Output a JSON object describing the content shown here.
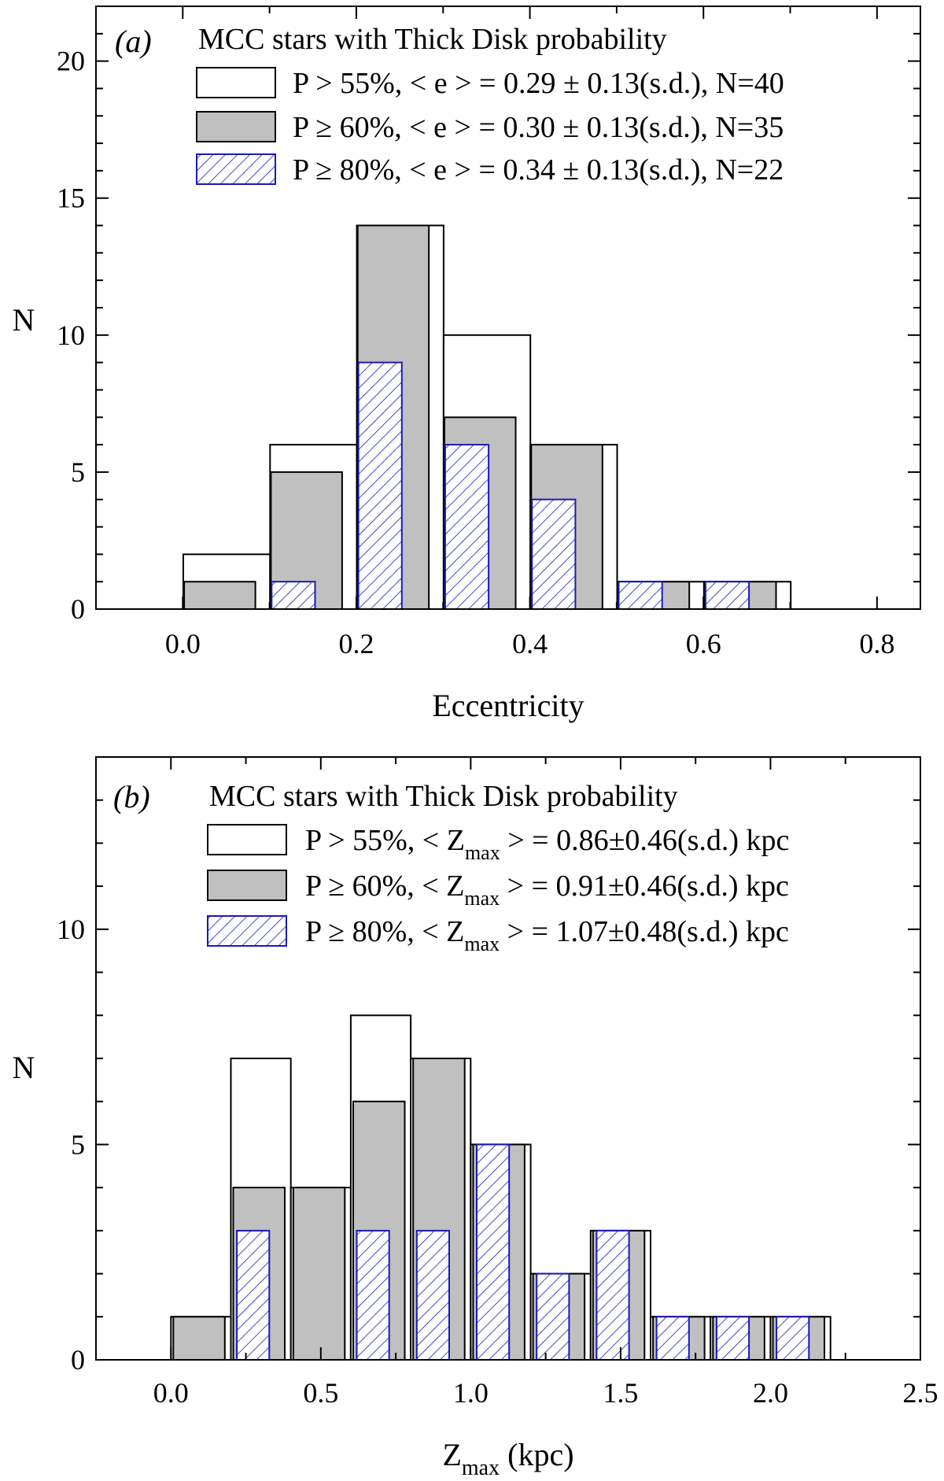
{
  "colors": {
    "bar_open_fill": "#ffffff",
    "bar_gray_fill": "#c0c0c0",
    "hatch_stroke": "#1a1ab8",
    "hatch_bg": "#ffffff",
    "axis": "#000000"
  },
  "chart_data": [
    {
      "type": "bar",
      "panel_label": "(a)",
      "xlabel": "Eccentricity",
      "ylabel": "N",
      "xlim": [
        -0.1,
        0.85
      ],
      "ylim": [
        0,
        22
      ],
      "xticks": [
        0.0,
        0.2,
        0.4,
        0.6,
        0.8
      ],
      "xtick_labels": [
        "0.0",
        "0.2",
        "0.4",
        "0.6",
        "0.8"
      ],
      "yticks": [
        0,
        5,
        10,
        15,
        20
      ],
      "ytick_labels": [
        "0",
        "5",
        "10",
        "15",
        "20"
      ],
      "bin_width": 0.1,
      "legend_title": "MCC stars with Thick Disk probability",
      "legend_placement": "top",
      "series": [
        {
          "name": "P > 55%,  < e > = 0.29 ± 0.13(s.d.),  N=40",
          "style": "open",
          "bins": [
            0.0,
            0.1,
            0.2,
            0.3,
            0.4,
            0.5,
            0.6
          ],
          "values": [
            2,
            6,
            14,
            10,
            6,
            1,
            1
          ]
        },
        {
          "name": "P ≥ 60%,  < e > = 0.30 ± 0.13(s.d.),  N=35",
          "style": "gray",
          "bins": [
            0.0,
            0.1,
            0.2,
            0.3,
            0.4,
            0.5,
            0.6
          ],
          "values": [
            1,
            5,
            14,
            7,
            6,
            1,
            1
          ]
        },
        {
          "name": "P ≥ 80%,  < e > = 0.34 ± 0.13(s.d.),  N=22",
          "style": "hatch",
          "bins": [
            0.1,
            0.2,
            0.3,
            0.4,
            0.5,
            0.6
          ],
          "values": [
            1,
            9,
            6,
            4,
            1,
            1
          ]
        }
      ]
    },
    {
      "type": "bar",
      "panel_label": "(b)",
      "xlabel": "Z",
      "xlabel_sub": "max",
      "xlabel_suffix": " (kpc)",
      "ylabel": "N",
      "xlim": [
        -0.25,
        2.5
      ],
      "ylim": [
        0,
        14
      ],
      "xticks": [
        0.0,
        0.5,
        1.0,
        1.5,
        2.0,
        2.5
      ],
      "xtick_labels": [
        "0.0",
        "0.5",
        "1.0",
        "1.5",
        "2.0",
        "2.5"
      ],
      "yticks": [
        0,
        5,
        10
      ],
      "ytick_labels": [
        "0",
        "5",
        "10"
      ],
      "bin_width": 0.2,
      "legend_title": "MCC stars with Thick Disk probability",
      "legend_placement": "top",
      "series": [
        {
          "name_pre": "P > 55%,   < Z",
          "name_sub": "max",
          "name_post": " > = 0.86±0.46(s.d.) kpc",
          "style": "open",
          "bins": [
            0.0,
            0.2,
            0.4,
            0.6,
            0.8,
            1.0,
            1.2,
            1.4,
            1.6,
            1.8,
            2.0
          ],
          "values": [
            1,
            7,
            4,
            8,
            7,
            5,
            2,
            3,
            1,
            1,
            1
          ]
        },
        {
          "name_pre": "P ≥ 60%,   < Z",
          "name_sub": "max",
          "name_post": " > = 0.91±0.46(s.d.) kpc",
          "style": "gray",
          "bins": [
            0.0,
            0.2,
            0.4,
            0.6,
            0.8,
            1.0,
            1.2,
            1.4,
            1.6,
            1.8,
            2.0
          ],
          "values": [
            1,
            4,
            4,
            6,
            7,
            5,
            2,
            3,
            1,
            1,
            1
          ]
        },
        {
          "name_pre": "P ≥ 80%,   < Z",
          "name_sub": "max",
          "name_post": " > = 1.07±0.48(s.d.) kpc",
          "style": "hatch",
          "bins": [
            0.2,
            0.6,
            0.8,
            1.0,
            1.2,
            1.4,
            1.6,
            1.8,
            2.0
          ],
          "values": [
            3,
            3,
            3,
            5,
            2,
            3,
            1,
            1,
            1
          ]
        }
      ]
    }
  ]
}
